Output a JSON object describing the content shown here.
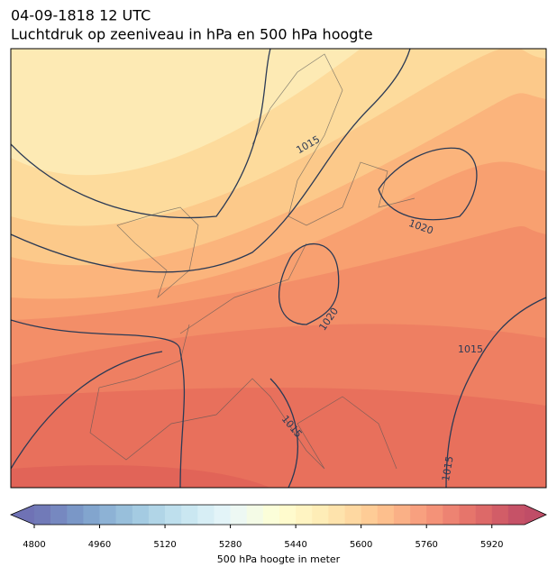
{
  "title": [
    "04-09-1818 12 UTC",
    "Luchtdruk op zeeniveau in hPa en 500 hPa hoogte"
  ],
  "isobar_labels": [
    1015,
    1020,
    1020,
    1015,
    1015,
    1015
  ],
  "colorbar": {
    "label": "500 hPa hoogte in meter",
    "lim": [
      4800,
      6000
    ],
    "step": 40,
    "ticks": [
      4800,
      4960,
      5120,
      5280,
      5440,
      5600,
      5760,
      5920
    ],
    "colormap": [
      "#313695",
      "#4575b4",
      "#74add1",
      "#abd9e9",
      "#e0f3f8",
      "#ffffbf",
      "#fee090",
      "#fdae61",
      "#f46d43",
      "#d73027",
      "#a50026"
    ],
    "alpha": 0.7
  }
}
